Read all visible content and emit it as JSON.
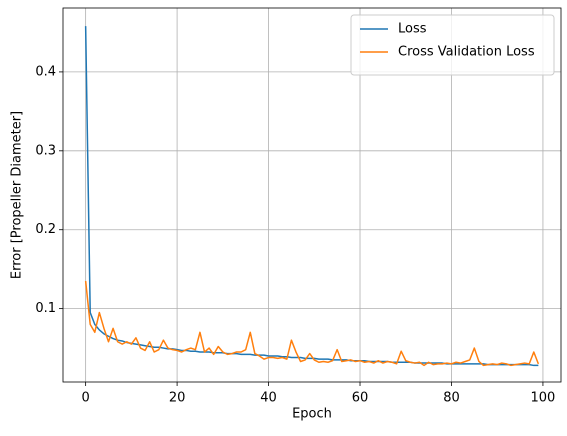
{
  "chart_data": {
    "type": "line",
    "xlabel": "Epoch",
    "ylabel": "Error [Propeller Diameter]",
    "x": [
      0,
      1,
      2,
      3,
      4,
      5,
      6,
      7,
      8,
      9,
      10,
      11,
      12,
      13,
      14,
      15,
      16,
      17,
      18,
      19,
      20,
      21,
      22,
      23,
      24,
      25,
      26,
      27,
      28,
      29,
      30,
      31,
      32,
      33,
      34,
      35,
      36,
      37,
      38,
      39,
      40,
      41,
      42,
      43,
      44,
      45,
      46,
      47,
      48,
      49,
      50,
      51,
      52,
      53,
      54,
      55,
      56,
      57,
      58,
      59,
      60,
      61,
      62,
      63,
      64,
      65,
      66,
      67,
      68,
      69,
      70,
      71,
      72,
      73,
      74,
      75,
      76,
      77,
      78,
      79,
      80,
      81,
      82,
      83,
      84,
      85,
      86,
      87,
      88,
      89,
      90,
      91,
      92,
      93,
      94,
      95,
      96,
      97,
      98,
      99
    ],
    "series": [
      {
        "name": "Loss",
        "color": "#1f77b4",
        "values": [
          0.458,
          0.095,
          0.08,
          0.073,
          0.068,
          0.065,
          0.062,
          0.06,
          0.059,
          0.057,
          0.056,
          0.055,
          0.054,
          0.053,
          0.052,
          0.051,
          0.051,
          0.05,
          0.049,
          0.049,
          0.048,
          0.047,
          0.047,
          0.046,
          0.046,
          0.045,
          0.045,
          0.045,
          0.044,
          0.044,
          0.044,
          0.043,
          0.043,
          0.043,
          0.042,
          0.042,
          0.042,
          0.041,
          0.041,
          0.041,
          0.04,
          0.04,
          0.04,
          0.039,
          0.039,
          0.038,
          0.038,
          0.038,
          0.037,
          0.037,
          0.037,
          0.036,
          0.036,
          0.036,
          0.035,
          0.035,
          0.035,
          0.035,
          0.034,
          0.034,
          0.034,
          0.034,
          0.033,
          0.033,
          0.033,
          0.033,
          0.033,
          0.032,
          0.032,
          0.032,
          0.032,
          0.032,
          0.031,
          0.031,
          0.031,
          0.031,
          0.031,
          0.031,
          0.031,
          0.03,
          0.03,
          0.03,
          0.03,
          0.03,
          0.03,
          0.03,
          0.03,
          0.03,
          0.029,
          0.029,
          0.029,
          0.029,
          0.029,
          0.029,
          0.029,
          0.029,
          0.029,
          0.029,
          0.028,
          0.028
        ]
      },
      {
        "name": "Cross Validation Loss",
        "color": "#ff7f0e",
        "values": [
          0.135,
          0.08,
          0.07,
          0.095,
          0.075,
          0.058,
          0.075,
          0.058,
          0.055,
          0.058,
          0.055,
          0.063,
          0.05,
          0.047,
          0.058,
          0.045,
          0.048,
          0.06,
          0.05,
          0.048,
          0.047,
          0.045,
          0.048,
          0.05,
          0.048,
          0.07,
          0.045,
          0.05,
          0.042,
          0.052,
          0.045,
          0.042,
          0.043,
          0.045,
          0.045,
          0.048,
          0.07,
          0.043,
          0.04,
          0.036,
          0.038,
          0.038,
          0.037,
          0.038,
          0.036,
          0.06,
          0.045,
          0.033,
          0.035,
          0.043,
          0.035,
          0.032,
          0.033,
          0.032,
          0.034,
          0.048,
          0.033,
          0.034,
          0.035,
          0.033,
          0.034,
          0.032,
          0.033,
          0.031,
          0.034,
          0.031,
          0.033,
          0.032,
          0.03,
          0.046,
          0.034,
          0.032,
          0.031,
          0.032,
          0.028,
          0.032,
          0.029,
          0.03,
          0.03,
          0.031,
          0.03,
          0.032,
          0.031,
          0.033,
          0.035,
          0.05,
          0.033,
          0.028,
          0.029,
          0.03,
          0.029,
          0.031,
          0.03,
          0.028,
          0.029,
          0.03,
          0.031,
          0.03,
          0.045,
          0.03
        ]
      }
    ],
    "xlim": [
      -4.95,
      103.95
    ],
    "ylim": [
      0.007,
      0.481
    ],
    "xticks": [
      0,
      20,
      40,
      60,
      80,
      100
    ],
    "yticks": [
      0.1,
      0.2,
      0.3,
      0.4
    ],
    "grid": true,
    "legend": "upper right"
  }
}
